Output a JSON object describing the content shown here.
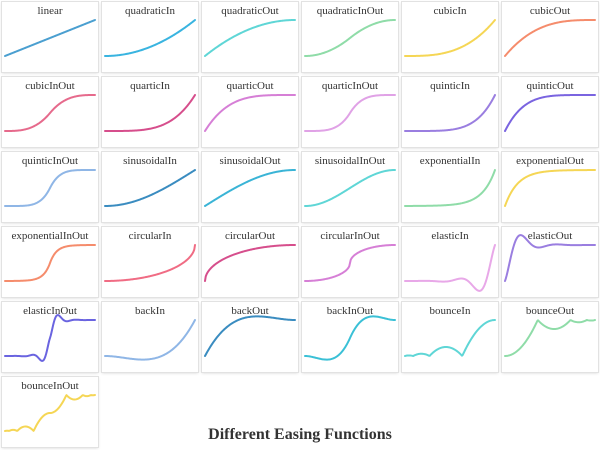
{
  "title": "Different Easing Functions",
  "chart_data": {
    "type": "line",
    "title": "Different Easing Functions",
    "x_domain": [
      0,
      1
    ],
    "subplots": [
      {
        "name": "linear",
        "color": "#4a9fd0",
        "fn": "linear"
      },
      {
        "name": "quadraticIn",
        "color": "#39b4e0",
        "fn": "quadraticIn"
      },
      {
        "name": "quadraticOut",
        "color": "#5fd6d6",
        "fn": "quadraticOut"
      },
      {
        "name": "quadraticInOut",
        "color": "#8fdca8",
        "fn": "quadraticInOut"
      },
      {
        "name": "cubicIn",
        "color": "#f5d655",
        "fn": "cubicIn"
      },
      {
        "name": "cubicOut",
        "color": "#f58c6c",
        "fn": "cubicOut"
      },
      {
        "name": "cubicInOut",
        "color": "#e66a8c",
        "fn": "cubicInOut"
      },
      {
        "name": "quarticIn",
        "color": "#d64e8c",
        "fn": "quarticIn"
      },
      {
        "name": "quarticOut",
        "color": "#d67fd6",
        "fn": "quarticOut"
      },
      {
        "name": "quarticInOut",
        "color": "#e0a2e6",
        "fn": "quarticInOut"
      },
      {
        "name": "quinticIn",
        "color": "#9a7ee0",
        "fn": "quinticIn"
      },
      {
        "name": "quinticOut",
        "color": "#7a64e0",
        "fn": "quinticOut"
      },
      {
        "name": "quinticInOut",
        "color": "#8fb6e6",
        "fn": "quinticInOut"
      },
      {
        "name": "sinusoidalIn",
        "color": "#3a8cc0",
        "fn": "sinusoidalIn"
      },
      {
        "name": "sinusoidalOut",
        "color": "#3ab4d6",
        "fn": "sinusoidalOut"
      },
      {
        "name": "sinusoidalInOut",
        "color": "#5fd6d6",
        "fn": "sinusoidalInOut"
      },
      {
        "name": "exponentialIn",
        "color": "#8fdca8",
        "fn": "exponentialIn"
      },
      {
        "name": "exponentialOut",
        "color": "#f5d655",
        "fn": "exponentialOut"
      },
      {
        "name": "exponentialInOut",
        "color": "#f58c6c",
        "fn": "exponentialInOut"
      },
      {
        "name": "circularIn",
        "color": "#f06c84",
        "fn": "circularIn"
      },
      {
        "name": "circularOut",
        "color": "#d64e8c",
        "fn": "circularOut"
      },
      {
        "name": "circularInOut",
        "color": "#d67fd6",
        "fn": "circularInOut"
      },
      {
        "name": "elasticIn",
        "color": "#e8a8e8",
        "fn": "elasticIn"
      },
      {
        "name": "elasticOut",
        "color": "#9a7ee0",
        "fn": "elasticOut"
      },
      {
        "name": "elasticInOut",
        "color": "#6a64e0",
        "fn": "elasticInOut"
      },
      {
        "name": "backIn",
        "color": "#8fb6e6",
        "fn": "backIn"
      },
      {
        "name": "backOut",
        "color": "#3a8cc0",
        "fn": "backOut"
      },
      {
        "name": "backInOut",
        "color": "#3ac0d6",
        "fn": "backInOut"
      },
      {
        "name": "bounceIn",
        "color": "#5fd6d6",
        "fn": "bounceIn"
      },
      {
        "name": "bounceOut",
        "color": "#8fdca8",
        "fn": "bounceOut"
      },
      {
        "name": "bounceInOut",
        "color": "#f5d655",
        "fn": "bounceInOut"
      }
    ]
  }
}
